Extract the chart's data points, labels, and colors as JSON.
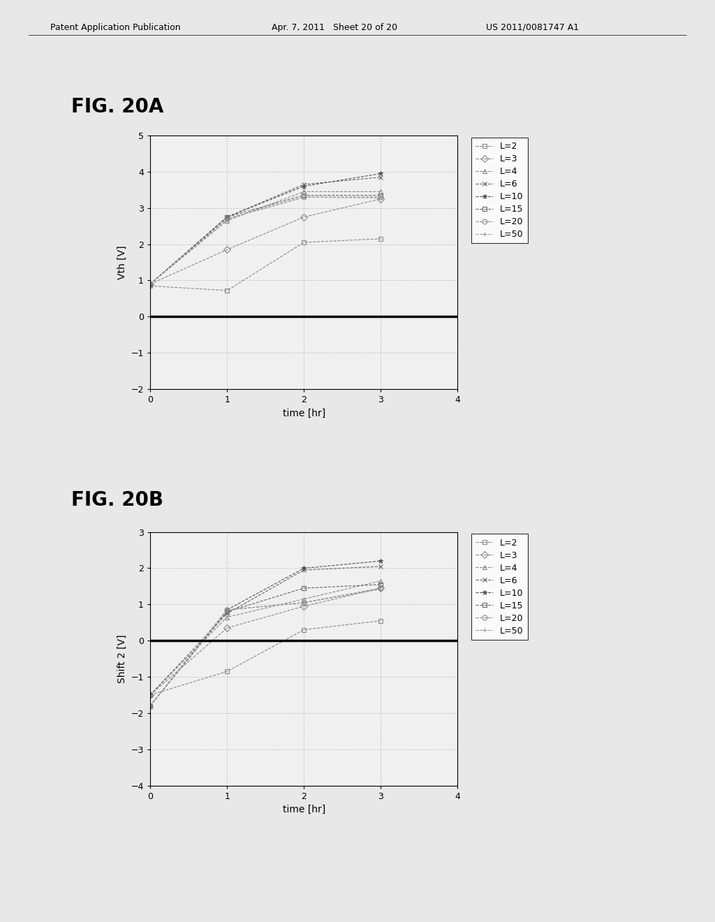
{
  "header_left": "Patent Application Publication",
  "header_mid": "Apr. 7, 2011   Sheet 20 of 20",
  "header_right": "US 2011/0081747 A1",
  "fig_a_label": "FIG. 20A",
  "fig_b_label": "FIG. 20B",
  "xlabel": "time [hr]",
  "ylabel_a": "Vth [V]",
  "ylabel_b": "Shift 2 [V]",
  "xlim": [
    0,
    4
  ],
  "ylim_a": [
    -2,
    5
  ],
  "ylim_b": [
    -4,
    3
  ],
  "yticks_a": [
    -2,
    -1,
    0,
    1,
    2,
    3,
    4,
    5
  ],
  "yticks_b": [
    -4,
    -3,
    -2,
    -1,
    0,
    1,
    2,
    3
  ],
  "xticks": [
    0,
    1,
    2,
    3,
    4
  ],
  "series_a": [
    {
      "label": "L=2",
      "marker": "s",
      "linestyle": "--",
      "color": "#888888",
      "x": [
        0,
        1,
        2,
        3
      ],
      "y": [
        0.85,
        0.72,
        2.05,
        2.15
      ]
    },
    {
      "label": "L=3",
      "marker": "D",
      "linestyle": "--",
      "color": "#888888",
      "x": [
        0,
        1,
        2,
        3
      ],
      "y": [
        0.9,
        1.85,
        2.75,
        3.25
      ]
    },
    {
      "label": "L=4",
      "marker": "^",
      "linestyle": "--",
      "color": "#888888",
      "x": [
        0,
        1,
        2,
        3
      ],
      "y": [
        0.9,
        2.65,
        3.45,
        3.45
      ]
    },
    {
      "label": "L=6",
      "marker": "x",
      "linestyle": "--",
      "color": "#666666",
      "x": [
        0,
        1,
        2,
        3
      ],
      "y": [
        0.9,
        2.75,
        3.65,
        3.85
      ]
    },
    {
      "label": "L=10",
      "marker": "*",
      "linestyle": "--",
      "color": "#555555",
      "x": [
        0,
        1,
        2,
        3
      ],
      "y": [
        0.9,
        2.75,
        3.6,
        3.95
      ]
    },
    {
      "label": "L=15",
      "marker": "s",
      "linestyle": "--",
      "color": "#666666",
      "x": [
        0,
        1,
        2,
        3
      ],
      "y": [
        0.9,
        2.75,
        3.35,
        3.35
      ]
    },
    {
      "label": "L=20",
      "marker": "o",
      "linestyle": "--",
      "color": "#888888",
      "x": [
        0,
        1,
        2,
        3
      ],
      "y": [
        0.9,
        2.7,
        3.3,
        3.3
      ]
    },
    {
      "label": "L=50",
      "marker": "+",
      "linestyle": "--",
      "color": "#999999",
      "x": [
        0,
        1,
        2,
        3
      ],
      "y": [
        0.9,
        2.7,
        3.3,
        3.28
      ]
    }
  ],
  "series_b": [
    {
      "label": "L=2",
      "marker": "s",
      "linestyle": "--",
      "color": "#888888",
      "x": [
        0,
        1,
        2,
        3
      ],
      "y": [
        -1.5,
        -0.85,
        0.3,
        0.55
      ]
    },
    {
      "label": "L=3",
      "marker": "D",
      "linestyle": "--",
      "color": "#888888",
      "x": [
        0,
        1,
        2,
        3
      ],
      "y": [
        -1.5,
        0.35,
        0.95,
        1.45
      ]
    },
    {
      "label": "L=4",
      "marker": "^",
      "linestyle": "--",
      "color": "#888888",
      "x": [
        0,
        1,
        2,
        3
      ],
      "y": [
        -1.5,
        0.65,
        1.15,
        1.65
      ]
    },
    {
      "label": "L=6",
      "marker": "x",
      "linestyle": "--",
      "color": "#666666",
      "x": [
        0,
        1,
        2,
        3
      ],
      "y": [
        -1.5,
        0.75,
        1.95,
        2.05
      ]
    },
    {
      "label": "L=10",
      "marker": "*",
      "linestyle": "--",
      "color": "#555555",
      "x": [
        0,
        1,
        2,
        3
      ],
      "y": [
        -1.8,
        0.85,
        2.0,
        2.2
      ]
    },
    {
      "label": "L=15",
      "marker": "s",
      "linestyle": "--",
      "color": "#666666",
      "x": [
        0,
        1,
        2,
        3
      ],
      "y": [
        -1.8,
        0.8,
        1.45,
        1.55
      ]
    },
    {
      "label": "L=20",
      "marker": "o",
      "linestyle": "--",
      "color": "#888888",
      "x": [
        0,
        1,
        2,
        3
      ],
      "y": [
        -1.8,
        0.85,
        1.05,
        1.45
      ]
    },
    {
      "label": "L=50",
      "marker": "+",
      "linestyle": "--",
      "color": "#999999",
      "x": [
        0,
        1,
        2,
        3
      ],
      "y": [
        -1.8,
        0.85,
        1.05,
        1.42
      ]
    }
  ],
  "background_color": "#e8e8e8",
  "plot_bg": "#f0f0f0",
  "grid_color": "#aaaaaa",
  "fig_label_fontsize": 20,
  "axis_label_fontsize": 10,
  "tick_fontsize": 9,
  "legend_fontsize": 9,
  "header_fontsize": 9
}
